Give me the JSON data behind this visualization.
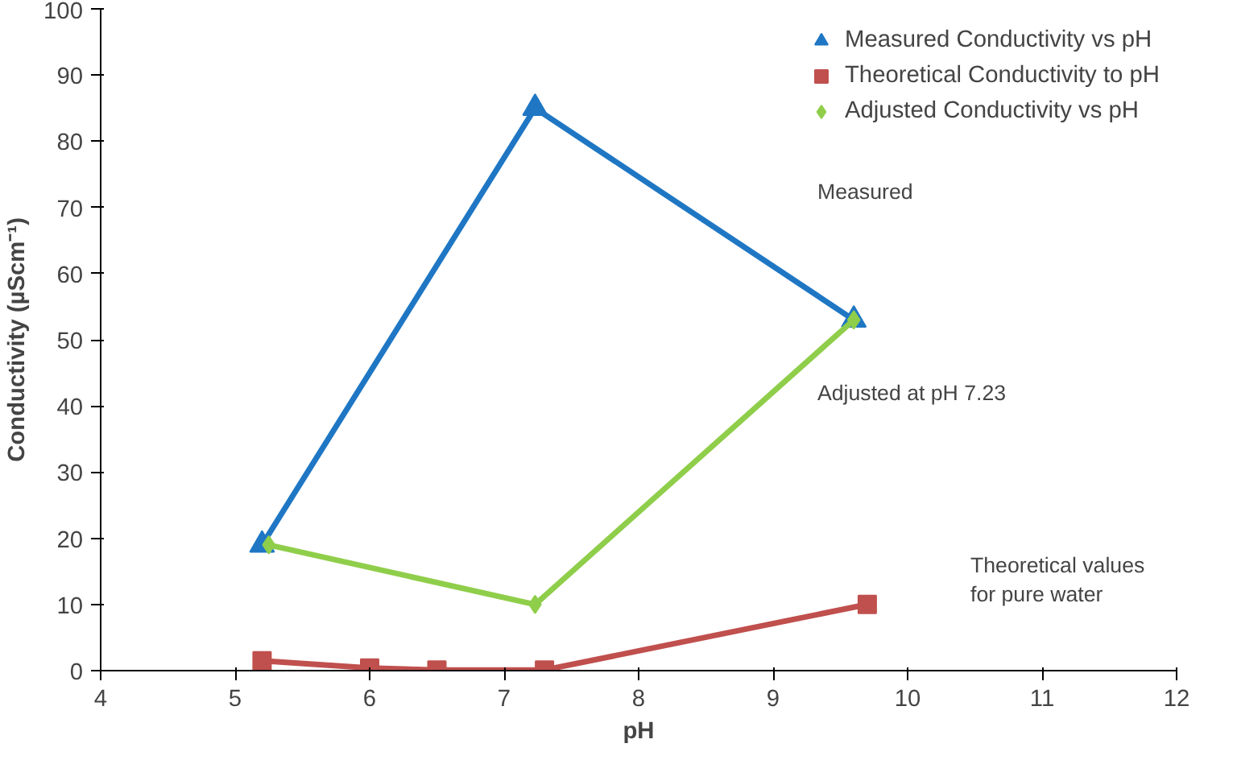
{
  "chart_data": {
    "type": "line",
    "xlabel": "pH",
    "ylabel": "Conductivity (µScm⁻¹)",
    "xlim": [
      4,
      12
    ],
    "xticks": [
      4,
      5,
      6,
      7,
      8,
      9,
      10,
      11,
      12
    ],
    "ylim": [
      0,
      100
    ],
    "yticks": [
      0,
      10,
      20,
      30,
      40,
      50,
      60,
      70,
      80,
      90,
      100
    ],
    "grid": false,
    "legend": "top right",
    "line_style": "solid",
    "series": [
      {
        "name": "Measured Conductivity vs pH",
        "color": "#1f77c4",
        "marker": "triangle",
        "x": [
          5.2,
          7.23,
          9.6
        ],
        "values": [
          19,
          85,
          53
        ]
      },
      {
        "name": "Theoretical Conductivity to pH",
        "color": "#c0504d",
        "marker": "square",
        "x": [
          5.2,
          6,
          6.5,
          7.3,
          9.7
        ],
        "values": [
          1.5,
          0.4,
          0.1,
          0.1,
          10
        ]
      },
      {
        "name": "Adjusted Conductivity vs pH",
        "color": "#8fce4a",
        "marker": "diamond",
        "x": [
          5.25,
          7.23,
          9.6
        ],
        "values": [
          19,
          10,
          53
        ]
      }
    ],
    "annotations": [
      "Measured",
      "Adjusted at pH 7.23",
      "Theoretical values\nfor pure water"
    ]
  }
}
